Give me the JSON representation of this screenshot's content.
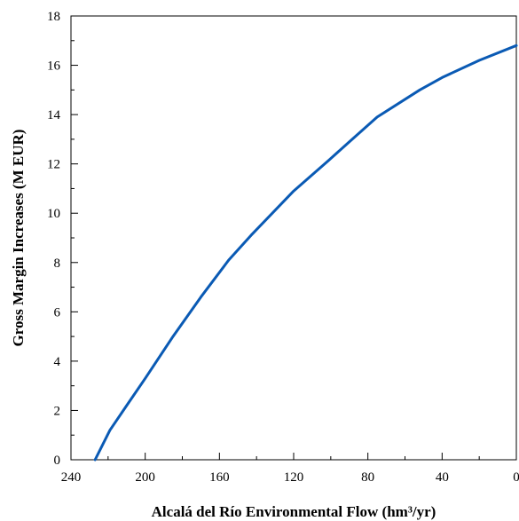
{
  "chart_data": {
    "type": "line",
    "xlabel": "Alcalá del Río Environmental Flow (hm³/yr)",
    "ylabel": "Gross Margin Increases (M EUR)",
    "xlim": [
      240,
      0
    ],
    "ylim": [
      0,
      18
    ],
    "x_reversed": true,
    "x_ticks": [
      240,
      200,
      160,
      120,
      80,
      40,
      0
    ],
    "x_tick_labels": [
      "240",
      "200",
      "160",
      "120",
      "80",
      "40",
      "0"
    ],
    "y_ticks": [
      0,
      2,
      4,
      6,
      8,
      10,
      12,
      14,
      16,
      18
    ],
    "y_tick_labels": [
      "0",
      "2",
      "4",
      "6",
      "8",
      "10",
      "12",
      "14",
      "16",
      "18"
    ],
    "grid": false,
    "series": [
      {
        "color": "#0a5ab4",
        "points": [
          [
            227,
            0
          ],
          [
            219,
            1.2
          ],
          [
            210,
            2.2
          ],
          [
            200,
            3.3
          ],
          [
            185,
            5.0
          ],
          [
            170,
            6.6
          ],
          [
            155,
            8.1
          ],
          [
            143,
            9.1
          ],
          [
            120,
            10.9
          ],
          [
            101,
            12.15
          ],
          [
            90,
            12.9
          ],
          [
            75,
            13.9
          ],
          [
            52,
            15.0
          ],
          [
            40,
            15.5
          ],
          [
            20,
            16.2
          ],
          [
            0,
            16.8
          ]
        ]
      }
    ]
  }
}
